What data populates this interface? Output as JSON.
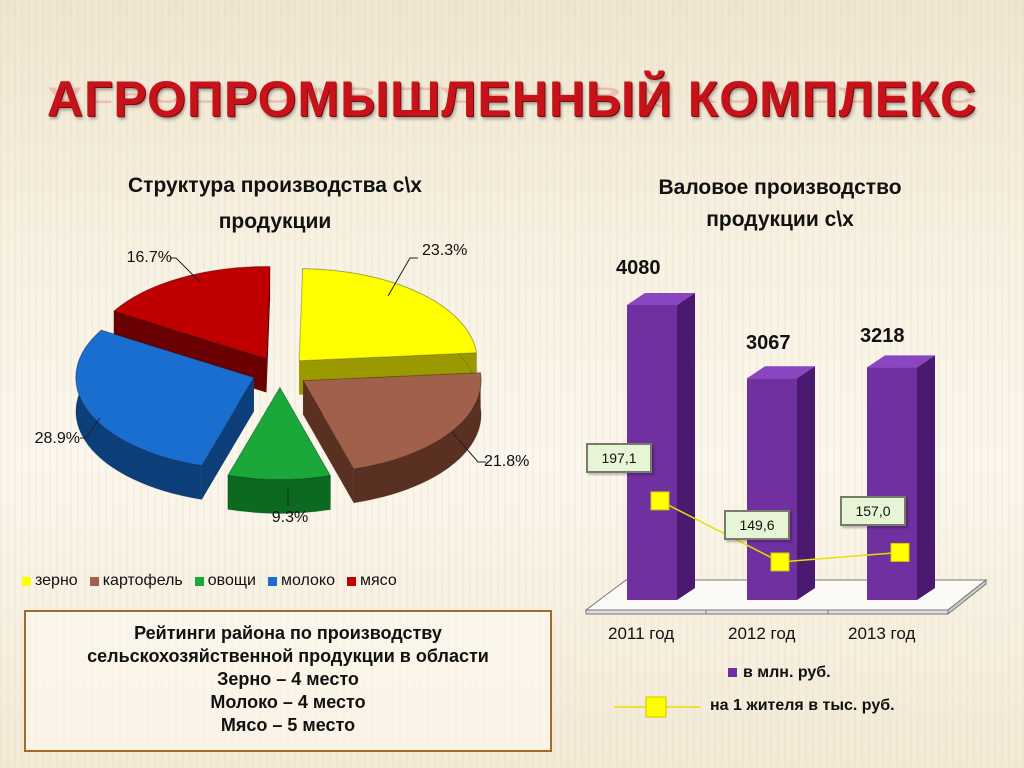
{
  "slide": {
    "title": "АГРОПРОМЫШЛЕННЫЙ КОМПЛЕКС",
    "ratings_box": {
      "lines": [
        "Рейтинги района по производству",
        "сельскохозяйственной продукции в области",
        "Зерно – 4 место",
        "Молоко – 4 место",
        "Мясо – 5 место"
      ]
    }
  },
  "chart_data": [
    {
      "type": "pie",
      "title_lines": [
        "Структура производства с\\х",
        "продукции"
      ],
      "legend_position": "bottom",
      "slices": [
        {
          "label": "зерно",
          "value": 23.3,
          "display": "23.3%",
          "color": "#ffff00",
          "side": "#9a9a00"
        },
        {
          "label": "картофель",
          "value": 21.8,
          "display": "21.8%",
          "color": "#a0604a",
          "side": "#5a3022"
        },
        {
          "label": "овощи",
          "value": 9.3,
          "display": "9.3%",
          "color": "#1aa83a",
          "side": "#0c6a20"
        },
        {
          "label": "молоко",
          "value": 28.9,
          "display": "28.9%",
          "color": "#1a6ed0",
          "side": "#0c3f7a"
        },
        {
          "label": "мясо",
          "value": 16.7,
          "display": "16.7%",
          "color": "#c00000",
          "side": "#6a0000"
        }
      ]
    },
    {
      "type": "bar",
      "title_lines": [
        "Валовое производство",
        "продукции с\\х"
      ],
      "categories": [
        "2011 год",
        "2012 год",
        "2013 год"
      ],
      "series": [
        {
          "name": "в млн. руб.",
          "type": "bar",
          "values": [
            4080,
            3067,
            3218
          ],
          "labels": [
            "4080",
            "3067",
            "3218"
          ],
          "color": "#7030a0"
        },
        {
          "name": "на 1 жителя  в тыс. руб.",
          "type": "line",
          "values": [
            197.1,
            149.6,
            157.0
          ],
          "labels": [
            "197,1",
            "149,6",
            "157,0"
          ],
          "color": "#ffff00"
        }
      ],
      "legend_position": "bottom"
    }
  ]
}
